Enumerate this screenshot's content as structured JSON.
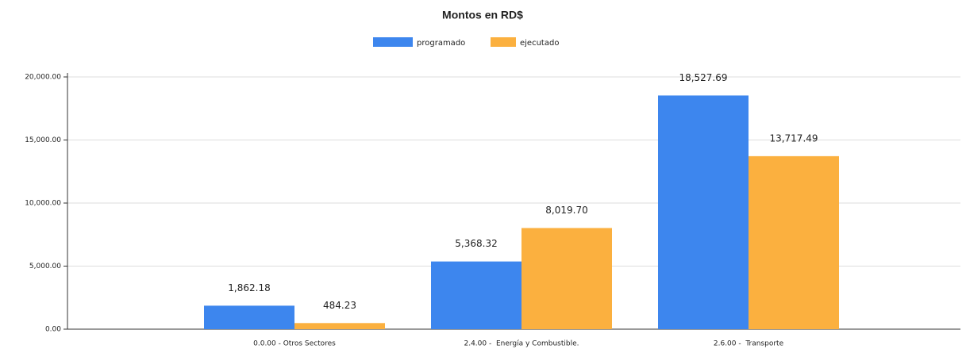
{
  "chart_data": {
    "type": "bar",
    "title": "Montos en RD$",
    "categories": [
      "0.0.00 - Otros Sectores",
      "2.4.00 -  Energía y Combustible.",
      "2.6.00 -  Transporte"
    ],
    "series": [
      {
        "name": "programado",
        "color": "#3d86ee",
        "values": [
          1862.18,
          5368.32,
          18527.69
        ],
        "value_labels": [
          "1,862.18",
          "5,368.32",
          "18,527.69"
        ]
      },
      {
        "name": "ejecutado",
        "color": "#fbb03f",
        "values": [
          484.23,
          8019.7,
          13717.49
        ],
        "value_labels": [
          "484.23",
          "8,019.70",
          "13,717.49"
        ]
      }
    ],
    "ylim": [
      0,
      20000
    ],
    "yticks": [
      {
        "value": 0,
        "label": "0.00"
      },
      {
        "value": 5000,
        "label": "5,000.00"
      },
      {
        "value": 10000,
        "label": "10,000.00"
      },
      {
        "value": 15000,
        "label": "15,000.00"
      },
      {
        "value": 20000,
        "label": "20,000.00"
      }
    ],
    "grid": true,
    "legend": "top"
  }
}
